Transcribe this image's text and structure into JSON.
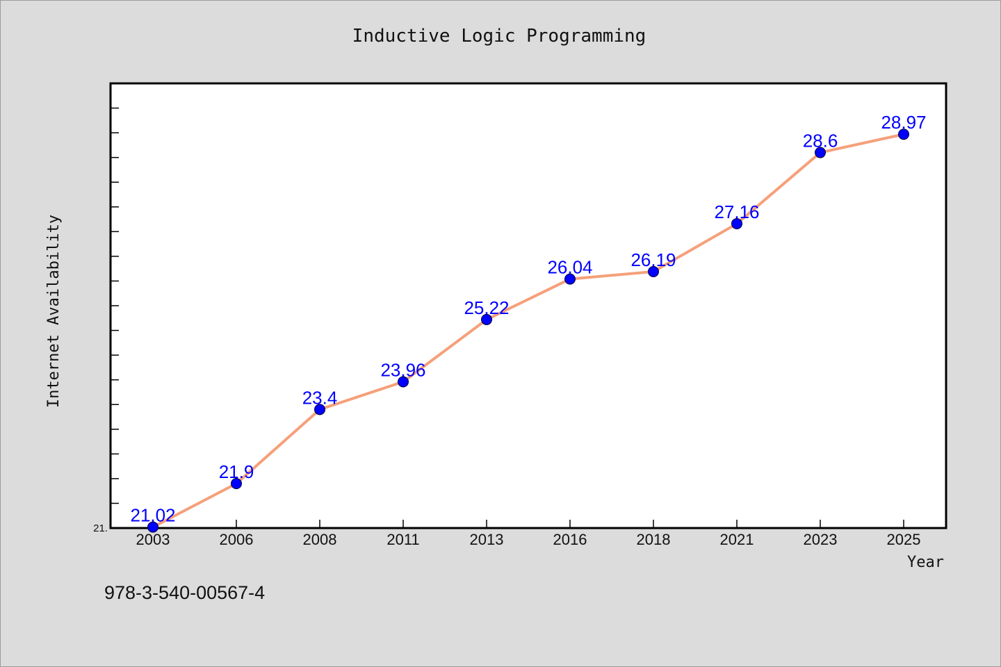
{
  "chart_data": {
    "type": "line",
    "title": "Inductive Logic Programming",
    "xlabel": "Year",
    "ylabel": "Internet Availability",
    "categories": [
      "2003",
      "2006",
      "2008",
      "2011",
      "2013",
      "2016",
      "2018",
      "2021",
      "2023",
      "2025"
    ],
    "series": [
      {
        "values": [
          21.02,
          21.9,
          23.4,
          23.96,
          25.22,
          26.04,
          26.19,
          27.16,
          28.6,
          28.97
        ],
        "data_labels": [
          "21.02",
          "21.9",
          "23.4",
          "23.96",
          "25.22",
          "26.04",
          "26.19",
          "27.16",
          "28.6",
          "28.97"
        ]
      }
    ],
    "ylim": [
      21.0,
      30.0
    ],
    "ytick_labels": [
      "21."
    ],
    "grid": false,
    "legend": "none",
    "colors": {
      "line": "#f5a07a",
      "marker": "#0000ff",
      "data_label": "#0000ff",
      "plot_background": "#ffffff",
      "figure_background": "#dcdcdc"
    }
  },
  "annotation": {
    "isbn": "978-3-540-00567-4"
  }
}
